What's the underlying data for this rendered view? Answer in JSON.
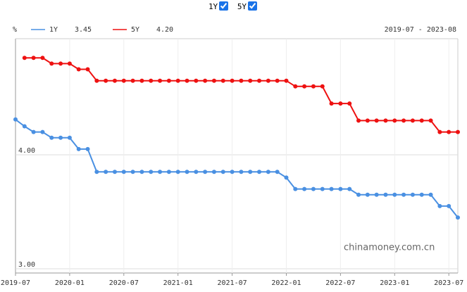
{
  "chart_data": {
    "type": "line",
    "unit": "%",
    "date_range": "2019-07 - 2023-08",
    "watermark": "chinamoney.com.cn",
    "legend_values": [
      "3.45",
      "4.20"
    ],
    "categories": [
      "2019-07",
      null,
      null,
      null,
      null,
      null,
      "2020-01",
      null,
      null,
      null,
      null,
      null,
      "2020-07",
      null,
      null,
      null,
      null,
      null,
      "2021-01",
      null,
      null,
      null,
      null,
      null,
      "2021-07",
      null,
      null,
      null,
      null,
      null,
      "2022-01",
      null,
      null,
      null,
      null,
      null,
      "2022-07",
      null,
      null,
      null,
      null,
      null,
      "2023-01",
      null,
      null,
      null,
      null,
      null,
      "2023-07",
      null
    ],
    "series": [
      {
        "name": "1Y",
        "color": "#4a90e2",
        "values": [
          4.31,
          4.25,
          4.2,
          4.2,
          4.15,
          4.15,
          4.15,
          4.05,
          4.05,
          3.85,
          3.85,
          3.85,
          3.85,
          3.85,
          3.85,
          3.85,
          3.85,
          3.85,
          3.85,
          3.85,
          3.85,
          3.85,
          3.85,
          3.85,
          3.85,
          3.85,
          3.85,
          3.85,
          3.85,
          3.85,
          3.8,
          3.7,
          3.7,
          3.7,
          3.7,
          3.7,
          3.7,
          3.7,
          3.65,
          3.65,
          3.65,
          3.65,
          3.65,
          3.65,
          3.65,
          3.65,
          3.65,
          3.55,
          3.55,
          3.45
        ]
      },
      {
        "name": "5Y",
        "color": "#ee1111",
        "values": [
          null,
          4.85,
          4.85,
          4.85,
          4.8,
          4.8,
          4.8,
          4.75,
          4.75,
          4.65,
          4.65,
          4.65,
          4.65,
          4.65,
          4.65,
          4.65,
          4.65,
          4.65,
          4.65,
          4.65,
          4.65,
          4.65,
          4.65,
          4.65,
          4.65,
          4.65,
          4.65,
          4.65,
          4.65,
          4.65,
          4.65,
          4.6,
          4.6,
          4.6,
          4.6,
          4.45,
          4.45,
          4.45,
          4.3,
          4.3,
          4.3,
          4.3,
          4.3,
          4.3,
          4.3,
          4.3,
          4.3,
          4.2,
          4.2,
          4.2
        ]
      }
    ],
    "ylim": [
      3.0,
      5.0
    ],
    "yticks": [
      {
        "value": 3,
        "label": "3.00"
      },
      {
        "value": 4,
        "label": "4.00"
      }
    ],
    "grid": true
  }
}
